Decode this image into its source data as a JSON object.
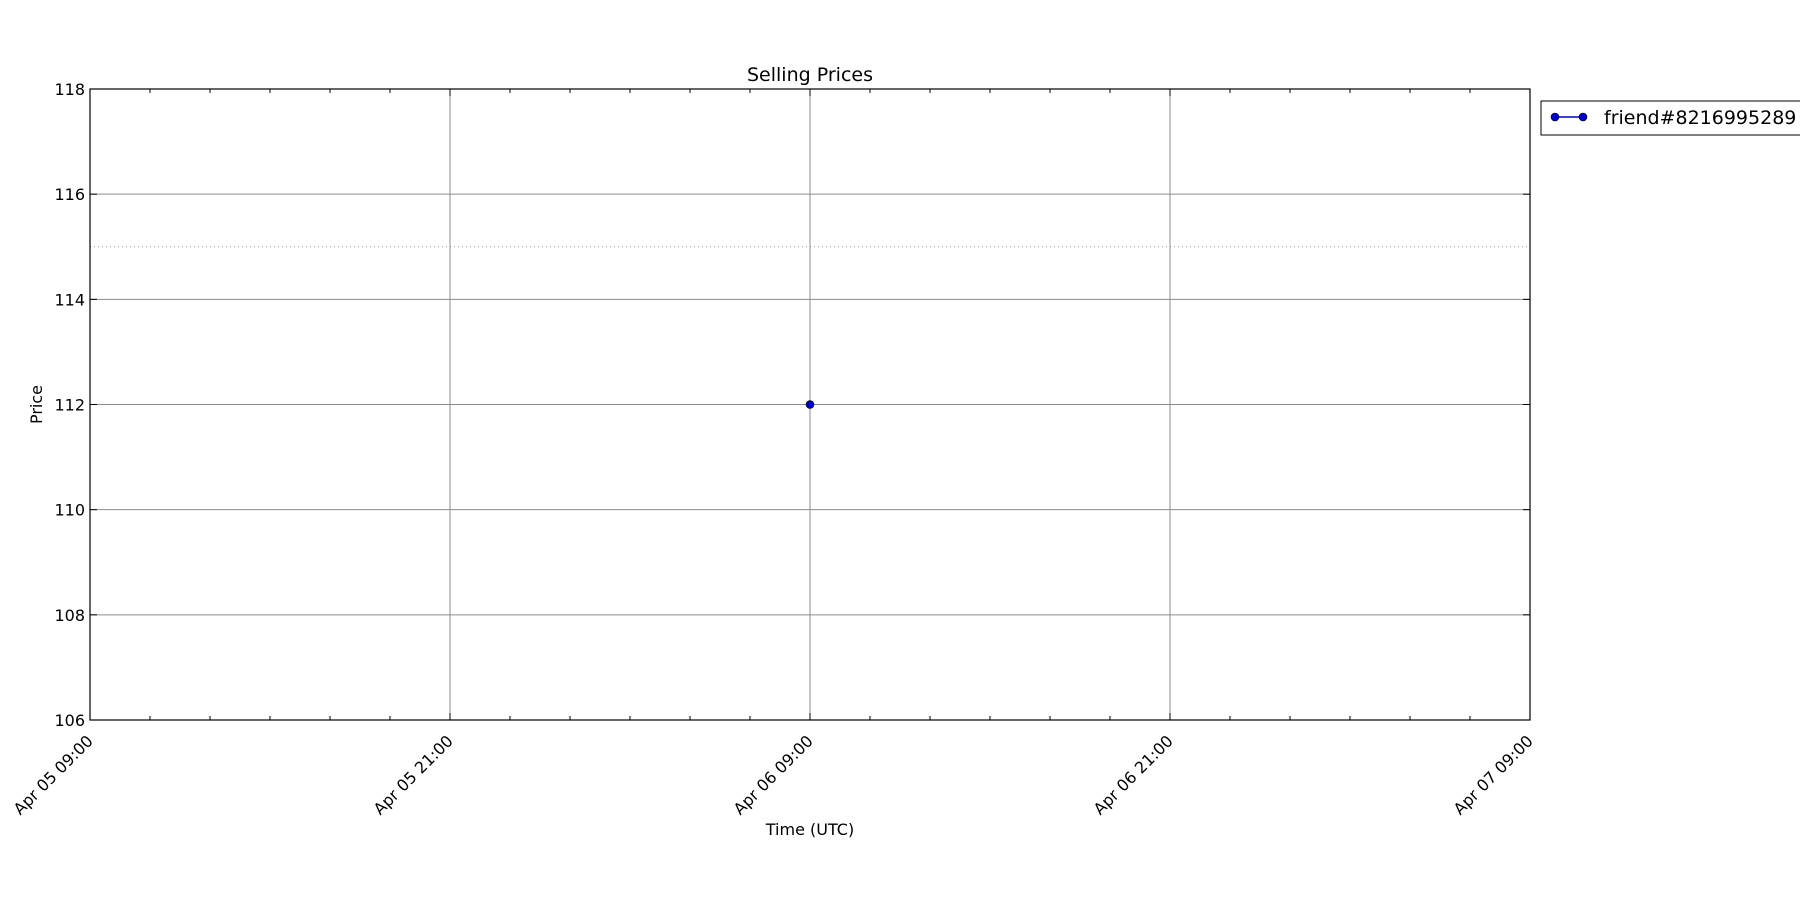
{
  "chart_data": {
    "type": "line",
    "title": "Selling Prices",
    "xlabel": "Time (UTC)",
    "ylabel": "Price",
    "x_ticks": [
      "Apr 05 09:00",
      "Apr 05 21:00",
      "Apr 06 09:00",
      "Apr 06 21:00",
      "Apr 07 09:00"
    ],
    "xlim": [
      "2024-04-05T09:00Z",
      "2024-04-07T09:00Z"
    ],
    "ylim": [
      106,
      118
    ],
    "y_ticks": [
      106,
      108,
      110,
      112,
      114,
      116,
      118
    ],
    "grid": true,
    "reference_line": {
      "y": 115,
      "style": "dotted"
    },
    "legend": {
      "location": "outside-top-right"
    },
    "series": [
      {
        "name": "friend#8216995289",
        "color": "#0000cc",
        "marker": "circle",
        "points": [
          {
            "x": "2024-04-06T09:00Z",
            "y": 112
          }
        ]
      }
    ]
  }
}
